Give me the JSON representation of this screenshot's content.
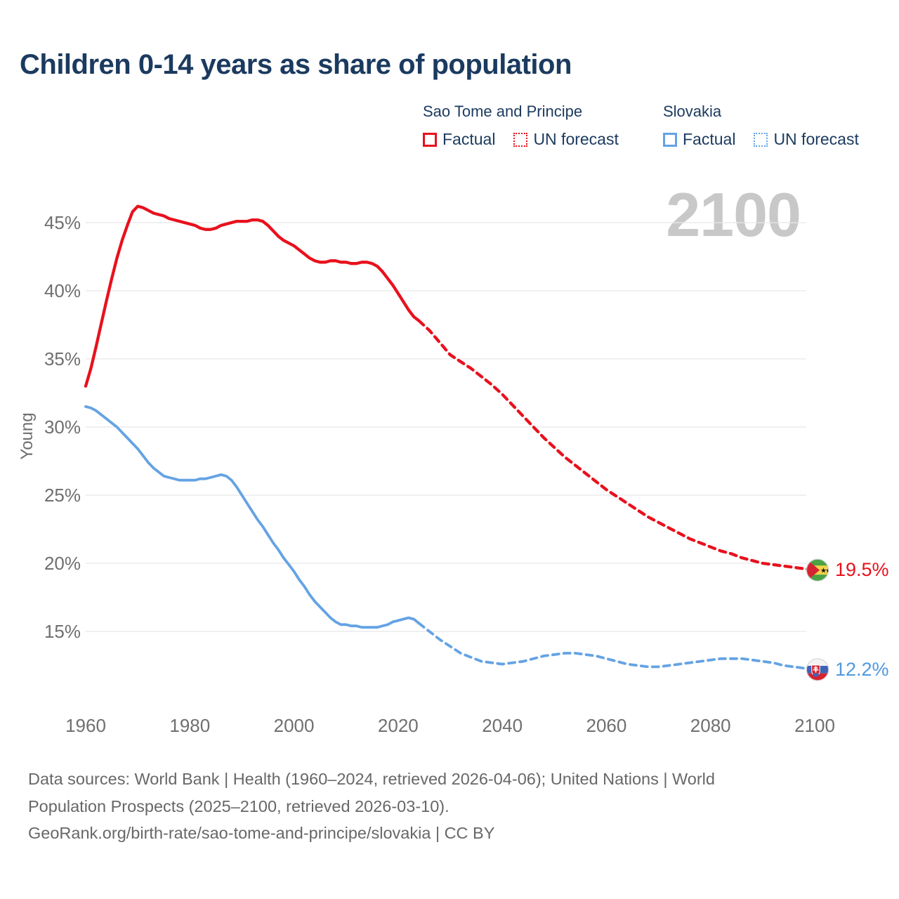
{
  "title": "Children 0-14 years as share of population",
  "watermark": "2100",
  "legend": {
    "groups": [
      {
        "name": "Sao Tome and Principe",
        "factual_label": "Factual",
        "forecast_label": "UN forecast",
        "color": "#e8111d"
      },
      {
        "name": "Slovakia",
        "factual_label": "Factual",
        "forecast_label": "UN forecast",
        "color": "#64a3e4"
      }
    ]
  },
  "end_labels": {
    "sao_tome_and_principe": {
      "value": "19.5%",
      "icon": "flag-sao-tome-and-principe-icon",
      "color": "#e8111d"
    },
    "slovakia": {
      "value": "12.2%",
      "icon": "flag-slovakia-icon",
      "color": "#4f99e0"
    }
  },
  "footer": {
    "line1": "Data sources: World Bank | Health (1960–2024, retrieved 2026-04-06); United Nations | World",
    "line2": "Population Prospects (2025–2100, retrieved 2026-03-10).",
    "line3": "GeoRank.org/birth-rate/sao-tome-and-principe/slovakia | CC BY"
  },
  "chart_data": {
    "type": "line",
    "title": "Children 0-14 years as share of population",
    "xlabel": "",
    "ylabel": "Young",
    "xlim": [
      1955,
      2115
    ],
    "ylim": [
      11,
      47.5
    ],
    "grid": "horizontal",
    "x_ticks": [
      {
        "v": 1960,
        "label": "1960"
      },
      {
        "v": 1980,
        "label": "1980"
      },
      {
        "v": 2000,
        "label": "2000"
      },
      {
        "v": 2020,
        "label": "2020"
      },
      {
        "v": 2040,
        "label": "2040"
      },
      {
        "v": 2060,
        "label": "2060"
      },
      {
        "v": 2080,
        "label": "2080"
      },
      {
        "v": 2100,
        "label": "2100"
      }
    ],
    "y_ticks": [
      {
        "v": 45,
        "label": "45%"
      },
      {
        "v": 40,
        "label": "40%"
      },
      {
        "v": 35,
        "label": "35%"
      },
      {
        "v": 30,
        "label": "30%"
      },
      {
        "v": 25,
        "label": "25%"
      },
      {
        "v": 20,
        "label": "20%"
      },
      {
        "v": 15,
        "label": "15%"
      }
    ],
    "series": [
      {
        "id": "stp-factual",
        "name": "Sao Tome and Principe",
        "phase": "Factual",
        "color": "#e8111d",
        "style": "solid",
        "data": [
          [
            1960,
            33.0
          ],
          [
            1961,
            34.3
          ],
          [
            1962,
            35.9
          ],
          [
            1963,
            37.6
          ],
          [
            1964,
            39.3
          ],
          [
            1965,
            40.9
          ],
          [
            1966,
            42.4
          ],
          [
            1967,
            43.7
          ],
          [
            1968,
            44.8
          ],
          [
            1969,
            45.8
          ],
          [
            1970,
            46.2
          ],
          [
            1971,
            46.1
          ],
          [
            1972,
            45.9
          ],
          [
            1973,
            45.7
          ],
          [
            1974,
            45.6
          ],
          [
            1975,
            45.5
          ],
          [
            1976,
            45.3
          ],
          [
            1977,
            45.2
          ],
          [
            1978,
            45.1
          ],
          [
            1979,
            45.0
          ],
          [
            1980,
            44.9
          ],
          [
            1981,
            44.8
          ],
          [
            1982,
            44.6
          ],
          [
            1983,
            44.5
          ],
          [
            1984,
            44.5
          ],
          [
            1985,
            44.6
          ],
          [
            1986,
            44.8
          ],
          [
            1987,
            44.9
          ],
          [
            1988,
            45.0
          ],
          [
            1989,
            45.1
          ],
          [
            1990,
            45.1
          ],
          [
            1991,
            45.1
          ],
          [
            1992,
            45.2
          ],
          [
            1993,
            45.2
          ],
          [
            1994,
            45.1
          ],
          [
            1995,
            44.8
          ],
          [
            1996,
            44.4
          ],
          [
            1997,
            44.0
          ],
          [
            1998,
            43.7
          ],
          [
            1999,
            43.5
          ],
          [
            2000,
            43.3
          ],
          [
            2001,
            43.0
          ],
          [
            2002,
            42.7
          ],
          [
            2003,
            42.4
          ],
          [
            2004,
            42.2
          ],
          [
            2005,
            42.1
          ],
          [
            2006,
            42.1
          ],
          [
            2007,
            42.2
          ],
          [
            2008,
            42.2
          ],
          [
            2009,
            42.1
          ],
          [
            2010,
            42.1
          ],
          [
            2011,
            42.0
          ],
          [
            2012,
            42.0
          ],
          [
            2013,
            42.1
          ],
          [
            2014,
            42.1
          ],
          [
            2015,
            42.0
          ],
          [
            2016,
            41.8
          ],
          [
            2017,
            41.4
          ],
          [
            2018,
            40.9
          ],
          [
            2019,
            40.4
          ],
          [
            2020,
            39.8
          ],
          [
            2021,
            39.2
          ],
          [
            2022,
            38.6
          ],
          [
            2023,
            38.1
          ],
          [
            2024,
            37.8
          ]
        ]
      },
      {
        "id": "stp-forecast",
        "name": "Sao Tome and Principe",
        "phase": "UN forecast",
        "color": "#e8111d",
        "style": "dashed",
        "data": [
          [
            2024,
            37.8
          ],
          [
            2026,
            37.1
          ],
          [
            2028,
            36.2
          ],
          [
            2030,
            35.3
          ],
          [
            2032,
            34.8
          ],
          [
            2034,
            34.3
          ],
          [
            2036,
            33.7
          ],
          [
            2038,
            33.1
          ],
          [
            2040,
            32.4
          ],
          [
            2042,
            31.6
          ],
          [
            2044,
            30.8
          ],
          [
            2046,
            30.0
          ],
          [
            2048,
            29.2
          ],
          [
            2050,
            28.5
          ],
          [
            2052,
            27.8
          ],
          [
            2054,
            27.2
          ],
          [
            2056,
            26.6
          ],
          [
            2058,
            26.0
          ],
          [
            2060,
            25.4
          ],
          [
            2062,
            24.9
          ],
          [
            2064,
            24.4
          ],
          [
            2066,
            23.9
          ],
          [
            2068,
            23.4
          ],
          [
            2070,
            23.0
          ],
          [
            2072,
            22.6
          ],
          [
            2074,
            22.2
          ],
          [
            2076,
            21.8
          ],
          [
            2078,
            21.5
          ],
          [
            2080,
            21.2
          ],
          [
            2082,
            20.9
          ],
          [
            2084,
            20.7
          ],
          [
            2086,
            20.4
          ],
          [
            2088,
            20.2
          ],
          [
            2090,
            20.0
          ],
          [
            2092,
            19.9
          ],
          [
            2094,
            19.8
          ],
          [
            2096,
            19.7
          ],
          [
            2098,
            19.6
          ],
          [
            2100,
            19.5
          ]
        ]
      },
      {
        "id": "svk-factual",
        "name": "Slovakia",
        "phase": "Factual",
        "color": "#64a3e4",
        "style": "solid",
        "data": [
          [
            1960,
            31.5
          ],
          [
            1961,
            31.4
          ],
          [
            1962,
            31.2
          ],
          [
            1963,
            30.9
          ],
          [
            1964,
            30.6
          ],
          [
            1965,
            30.3
          ],
          [
            1966,
            30.0
          ],
          [
            1967,
            29.6
          ],
          [
            1968,
            29.2
          ],
          [
            1969,
            28.8
          ],
          [
            1970,
            28.4
          ],
          [
            1971,
            27.9
          ],
          [
            1972,
            27.4
          ],
          [
            1973,
            27.0
          ],
          [
            1974,
            26.7
          ],
          [
            1975,
            26.4
          ],
          [
            1976,
            26.3
          ],
          [
            1977,
            26.2
          ],
          [
            1978,
            26.1
          ],
          [
            1979,
            26.1
          ],
          [
            1980,
            26.1
          ],
          [
            1981,
            26.1
          ],
          [
            1982,
            26.2
          ],
          [
            1983,
            26.2
          ],
          [
            1984,
            26.3
          ],
          [
            1985,
            26.4
          ],
          [
            1986,
            26.5
          ],
          [
            1987,
            26.4
          ],
          [
            1988,
            26.1
          ],
          [
            1989,
            25.6
          ],
          [
            1990,
            25.0
          ],
          [
            1991,
            24.4
          ],
          [
            1992,
            23.8
          ],
          [
            1993,
            23.2
          ],
          [
            1994,
            22.7
          ],
          [
            1995,
            22.1
          ],
          [
            1996,
            21.5
          ],
          [
            1997,
            21.0
          ],
          [
            1998,
            20.4
          ],
          [
            1999,
            19.9
          ],
          [
            2000,
            19.4
          ],
          [
            2001,
            18.8
          ],
          [
            2002,
            18.3
          ],
          [
            2003,
            17.7
          ],
          [
            2004,
            17.2
          ],
          [
            2005,
            16.8
          ],
          [
            2006,
            16.4
          ],
          [
            2007,
            16.0
          ],
          [
            2008,
            15.7
          ],
          [
            2009,
            15.5
          ],
          [
            2010,
            15.5
          ],
          [
            2011,
            15.4
          ],
          [
            2012,
            15.4
          ],
          [
            2013,
            15.3
          ],
          [
            2014,
            15.3
          ],
          [
            2015,
            15.3
          ],
          [
            2016,
            15.3
          ],
          [
            2017,
            15.4
          ],
          [
            2018,
            15.5
          ],
          [
            2019,
            15.7
          ],
          [
            2020,
            15.8
          ],
          [
            2021,
            15.9
          ],
          [
            2022,
            16.0
          ],
          [
            2023,
            15.9
          ],
          [
            2024,
            15.6
          ]
        ]
      },
      {
        "id": "svk-forecast",
        "name": "Slovakia",
        "phase": "UN forecast",
        "color": "#64a3e4",
        "style": "dashed",
        "data": [
          [
            2024,
            15.6
          ],
          [
            2026,
            15.0
          ],
          [
            2028,
            14.4
          ],
          [
            2030,
            13.9
          ],
          [
            2032,
            13.4
          ],
          [
            2034,
            13.1
          ],
          [
            2036,
            12.8
          ],
          [
            2038,
            12.7
          ],
          [
            2040,
            12.6
          ],
          [
            2042,
            12.7
          ],
          [
            2044,
            12.8
          ],
          [
            2046,
            13.0
          ],
          [
            2048,
            13.2
          ],
          [
            2050,
            13.3
          ],
          [
            2052,
            13.4
          ],
          [
            2054,
            13.4
          ],
          [
            2056,
            13.3
          ],
          [
            2058,
            13.2
          ],
          [
            2060,
            13.0
          ],
          [
            2062,
            12.8
          ],
          [
            2064,
            12.6
          ],
          [
            2066,
            12.5
          ],
          [
            2068,
            12.4
          ],
          [
            2070,
            12.4
          ],
          [
            2072,
            12.5
          ],
          [
            2074,
            12.6
          ],
          [
            2076,
            12.7
          ],
          [
            2078,
            12.8
          ],
          [
            2080,
            12.9
          ],
          [
            2082,
            13.0
          ],
          [
            2084,
            13.0
          ],
          [
            2086,
            13.0
          ],
          [
            2088,
            12.9
          ],
          [
            2090,
            12.8
          ],
          [
            2092,
            12.7
          ],
          [
            2094,
            12.5
          ],
          [
            2096,
            12.4
          ],
          [
            2098,
            12.3
          ],
          [
            2100,
            12.2
          ]
        ]
      }
    ],
    "end_annotations": [
      {
        "series": "Sao Tome and Principe",
        "year": 2100,
        "value": 19.5,
        "label": "19.5%"
      },
      {
        "series": "Slovakia",
        "year": 2100,
        "value": 12.2,
        "label": "12.2%"
      }
    ]
  }
}
